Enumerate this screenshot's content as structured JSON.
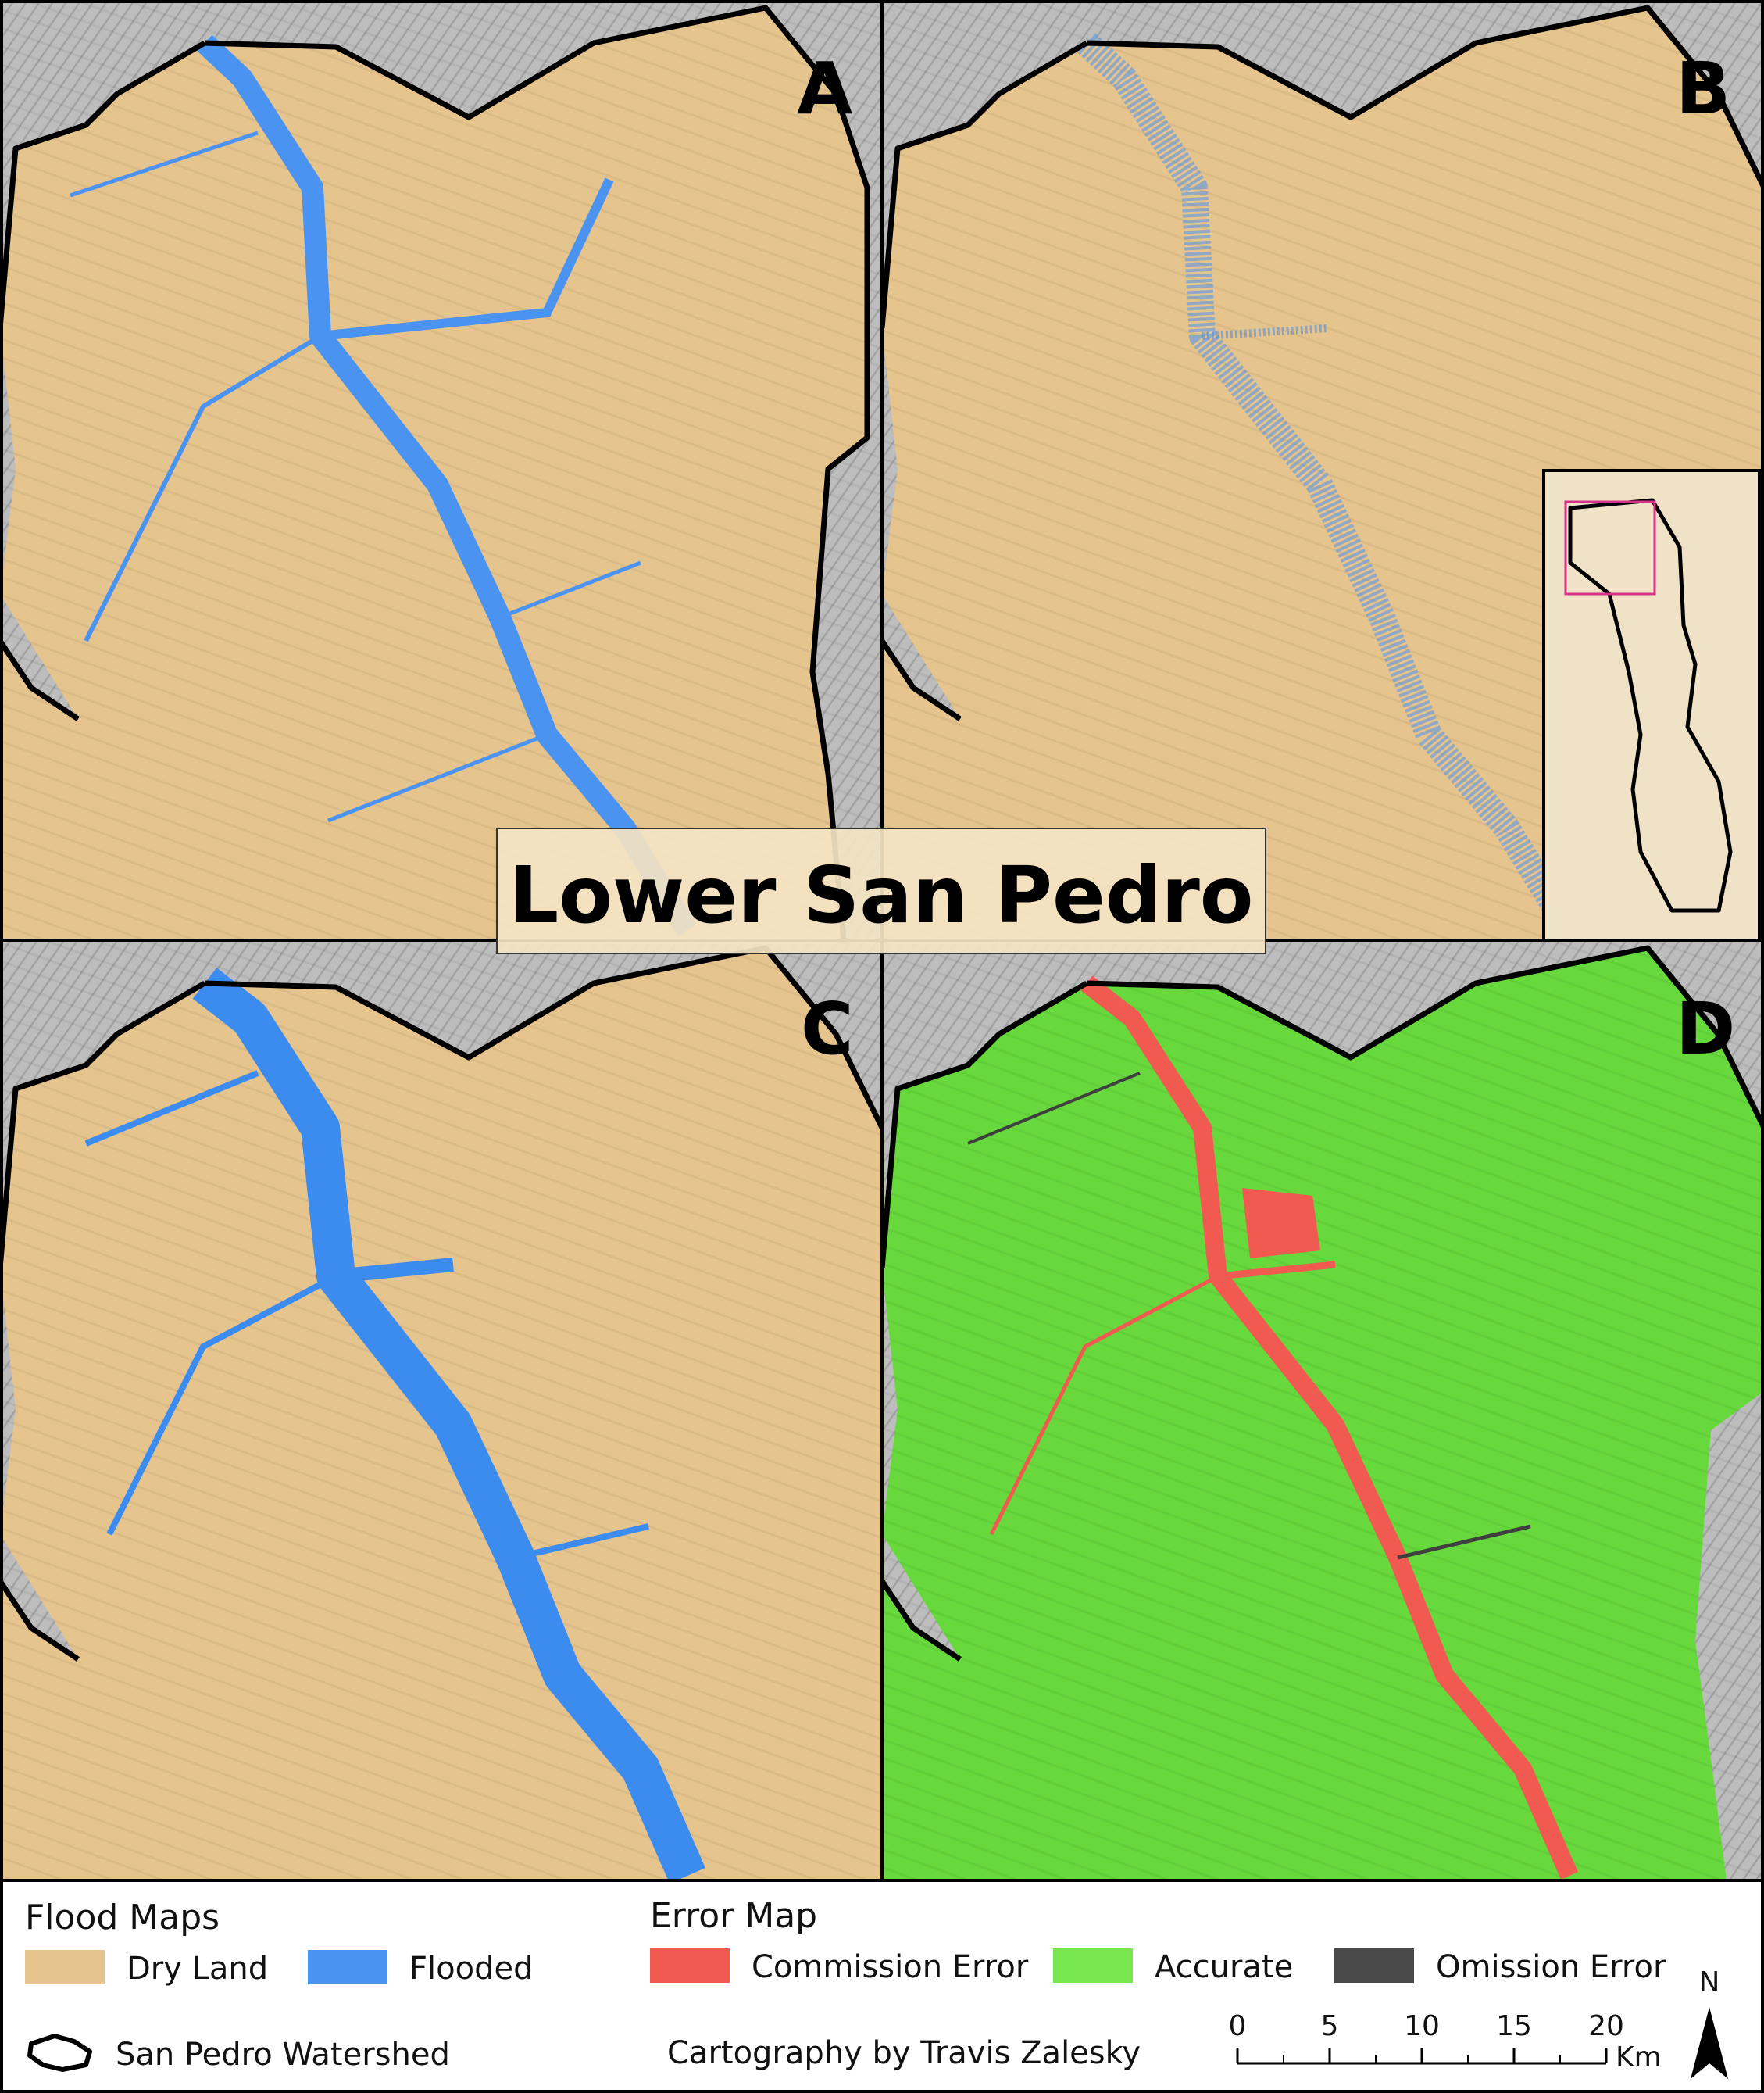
{
  "title": "Lower San Pedro",
  "panels": [
    "A",
    "B",
    "C",
    "D"
  ],
  "legend": {
    "flood_maps": {
      "heading": "Flood Maps",
      "items": [
        {
          "label": "Dry Land",
          "color": "#e6c48e"
        },
        {
          "label": "Flooded",
          "color": "#4a93f0"
        }
      ]
    },
    "error_map": {
      "heading": "Error Map",
      "items": [
        {
          "label": "Commission Error",
          "color": "#f05a50"
        },
        {
          "label": "Accurate",
          "color": "#78e64e"
        },
        {
          "label": "Omission Error",
          "color": "#4a4a4a"
        }
      ]
    },
    "watershed_label": "San Pedro Watershed"
  },
  "credit": "Cartography by Travis Zalesky",
  "scale_bar": {
    "ticks": [
      "0",
      "5",
      "10",
      "15",
      "20"
    ],
    "unit": "Km"
  },
  "north_arrow": {
    "label": "N",
    "icon": "north-arrow-icon"
  },
  "colors": {
    "dry_land": "#e6c48e",
    "flooded": "#4a93f0",
    "commission": "#f05a50",
    "accurate": "#67d93c",
    "omission": "#3f3f3f",
    "hillshade": "#b9b9b9",
    "inset_box": "#d6338a"
  }
}
